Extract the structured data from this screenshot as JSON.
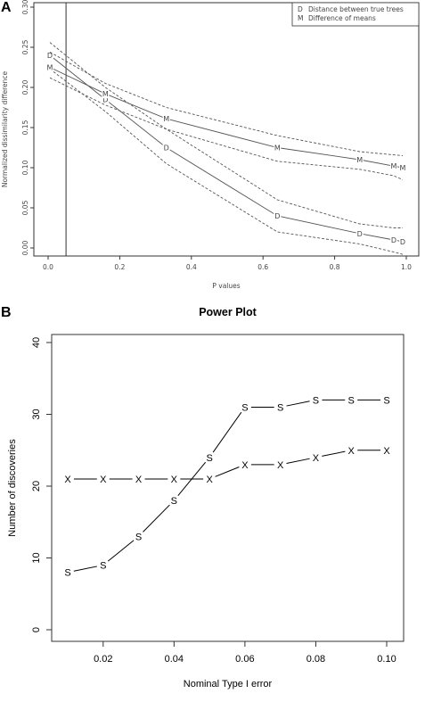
{
  "panels": {
    "a_letter": "A",
    "b_letter": "B"
  },
  "chart_data": [
    {
      "type": "line",
      "title": "",
      "xlabel": "P values",
      "ylabel": "Normalized dissimilarity difference",
      "xlim": [
        0.0,
        1.0
      ],
      "ylim": [
        -0.02,
        0.31
      ],
      "x_ticks": [
        0.0,
        0.2,
        0.4,
        0.6,
        0.8,
        1.0
      ],
      "x_tick_labels": [
        "0.0",
        "0.2",
        "0.4",
        "0.6",
        "0.8",
        "1.0"
      ],
      "y_ticks": [
        0.0,
        0.05,
        0.1,
        0.15,
        0.2,
        0.25,
        0.3
      ],
      "y_tick_labels": [
        "0.00",
        "0.05",
        "0.10",
        "0.15",
        "0.20",
        "0.25",
        "0.30"
      ],
      "vline": 0.05,
      "legend": [
        {
          "symbol": "D",
          "label": "Distance between true trees"
        },
        {
          "symbol": "M",
          "label": "Difference of means"
        }
      ],
      "legend_position": "top-right",
      "series": [
        {
          "name": "Distance between true trees",
          "symbol": "D",
          "x": [
            0.005,
            0.16,
            0.33,
            0.64,
            0.87,
            0.965,
            0.99
          ],
          "y": [
            0.24,
            0.185,
            0.125,
            0.04,
            0.018,
            0.01,
            0.008
          ],
          "band_upper": [
            0.256,
            0.2,
            0.148,
            0.06,
            0.03,
            0.025,
            0.025
          ],
          "band_lower": [
            0.223,
            0.17,
            0.105,
            0.02,
            0.005,
            -0.005,
            -0.008
          ]
        },
        {
          "name": "Difference of means",
          "symbol": "M",
          "x": [
            0.005,
            0.16,
            0.33,
            0.64,
            0.87,
            0.965,
            0.99
          ],
          "y": [
            0.225,
            0.192,
            0.161,
            0.125,
            0.11,
            0.102,
            0.1
          ],
          "band_upper": [
            0.244,
            0.205,
            0.175,
            0.14,
            0.12,
            0.116,
            0.115
          ],
          "band_lower": [
            0.212,
            0.178,
            0.148,
            0.108,
            0.098,
            0.09,
            0.085
          ]
        }
      ],
      "colors": {
        "lines": "#555555"
      }
    },
    {
      "type": "line",
      "title": "Power Plot",
      "xlabel": "Nominal Type I error",
      "ylabel": "Number of discoveries",
      "xlim": [
        0.0075,
        0.1025
      ],
      "ylim": [
        -1,
        41
      ],
      "x_ticks": [
        0.02,
        0.04,
        0.06,
        0.08,
        0.1
      ],
      "x_tick_labels": [
        "0.02",
        "0.04",
        "0.06",
        "0.08",
        "0.10"
      ],
      "y_ticks": [
        0,
        10,
        20,
        30,
        40
      ],
      "y_tick_labels": [
        "0",
        "10",
        "20",
        "30",
        "40"
      ],
      "categories": [
        0.01,
        0.02,
        0.03,
        0.04,
        0.05,
        0.06,
        0.07,
        0.08,
        0.09,
        0.1
      ],
      "series": [
        {
          "symbol": "S",
          "values": [
            8,
            9,
            13,
            18,
            24,
            31,
            31,
            32,
            32,
            32
          ]
        },
        {
          "symbol": "X",
          "values": [
            21,
            21,
            21,
            21,
            21,
            23,
            23,
            24,
            25,
            25
          ]
        }
      ],
      "colors": {
        "lines": "#000000"
      }
    }
  ]
}
